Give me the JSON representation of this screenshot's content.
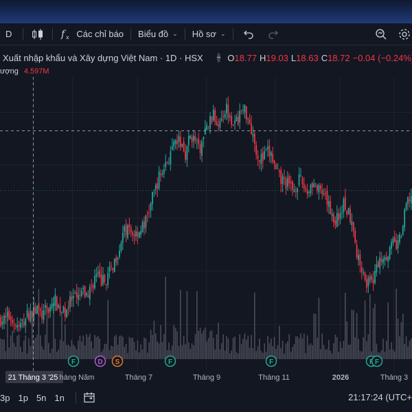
{
  "toolbar": {
    "interval": "D",
    "indicators_label": "Các chỉ báo",
    "chart_label": "Biểu đồ",
    "profile_label": "Hồ sơ"
  },
  "legend": {
    "title": "Xuất nhập khẩu và Xây dựng Việt Nam · 1D · HSX",
    "ohlc": [
      {
        "k": "O",
        "v": "18.77"
      },
      {
        "k": "H",
        "v": "19.03"
      },
      {
        "k": "L",
        "v": "18.63"
      },
      {
        "k": "C",
        "v": "18.72"
      }
    ],
    "change": "−0.04 (−0.24%)",
    "volume_label": "ượng",
    "volume_value": "4.597M"
  },
  "colors": {
    "up": "#26a69a",
    "down": "#f23645",
    "volume": "#5d606b",
    "background": "#131722"
  },
  "chart_data": {
    "type": "candlestick",
    "x_ticks": [
      "21 Tháng 3 '25",
      "háng Năm",
      "Tháng 7",
      "Tháng 9",
      "Tháng 11",
      "2026",
      "Tháng 3"
    ],
    "close_series": [
      15.6,
      15.5,
      15.8,
      15.3,
      15.0,
      15.4,
      15.9,
      16.0,
      16.3,
      15.8,
      16.1,
      16.4,
      16.8,
      16.3,
      16.0,
      16.5,
      16.9,
      16.8,
      17.3,
      17.1,
      17.6,
      18.4,
      18.1,
      18.0,
      18.5,
      19.2,
      20.0,
      21.0,
      21.4,
      21.1,
      21.2,
      21.4,
      21.8,
      22.8,
      23.8,
      24.7,
      25.3,
      25.9,
      26.4,
      27.1,
      27.0,
      26.3,
      27.5,
      27.2,
      26.4,
      27.4,
      28.2,
      28.8,
      28.3,
      28.9,
      29.3,
      28.7,
      28.1,
      28.9,
      29.2,
      28.6,
      27.4,
      26.2,
      25.9,
      26.4,
      26.2,
      25.1,
      24.6,
      24.5,
      24.2,
      24.0,
      24.6,
      24.3,
      23.8,
      24.5,
      24.1,
      23.6,
      23.3,
      22.8,
      21.9,
      22.3,
      23.1,
      22.5,
      22.1,
      19.5,
      19.1,
      18.0,
      17.8,
      18.6,
      19.4,
      19.8,
      19.9,
      20.5,
      20.3,
      21.3,
      23.1,
      23.6
    ],
    "event_markers": [
      {
        "letter": "F",
        "x": "háng Năm"
      },
      {
        "letter": "D",
        "x": "háng Năm"
      },
      {
        "letter": "S",
        "x": "háng Năm"
      },
      {
        "letter": "F",
        "x": "Tháng 7"
      },
      {
        "letter": "F",
        "x": "Tháng 11"
      },
      {
        "letter": "F",
        "x": "Tháng 3"
      },
      {
        "letter": "F",
        "x": "Tháng 3"
      }
    ]
  },
  "bottombar": {
    "timeframes": [
      "3p",
      "1p",
      "5n",
      "1n"
    ],
    "clock": "21:17:24 (UTC+"
  },
  "icons": {
    "undo": "undo-icon",
    "redo": "redo-icon",
    "search": "search-icon",
    "settings": "gear-icon",
    "bar_style": "candles-icon",
    "date_range": "calendar-icon"
  }
}
